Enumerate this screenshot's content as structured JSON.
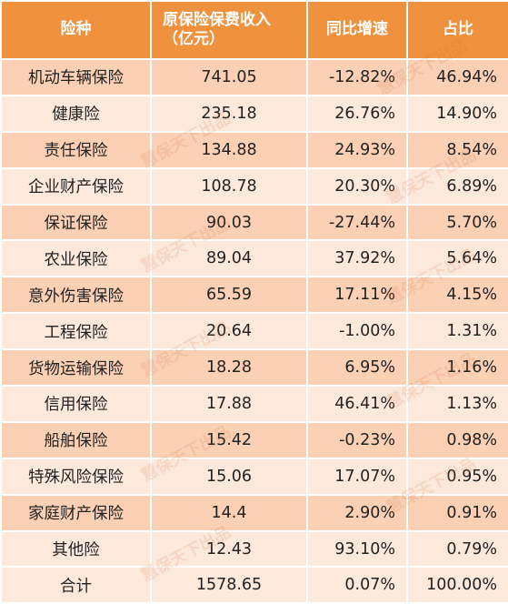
{
  "header": {
    "col1": "险种",
    "col2_line1": "原保险保费收入",
    "col2_line2": "（亿元）",
    "col3": "同比增速",
    "col4": "占比"
  },
  "rows": [
    {
      "name": "机动车辆保险",
      "premium": "741.05",
      "growth": "-12.82%",
      "share": "46.94%"
    },
    {
      "name": "健康险",
      "premium": "235.18",
      "growth": "26.76%",
      "share": "14.90%"
    },
    {
      "name": "责任保险",
      "premium": "134.88",
      "growth": "24.93%",
      "share": "8.54%"
    },
    {
      "name": "企业财产保险",
      "premium": "108.78",
      "growth": "20.30%",
      "share": "6.89%"
    },
    {
      "name": "保证保险",
      "premium": "90.03",
      "growth": "-27.44%",
      "share": "5.70%"
    },
    {
      "name": "农业保险",
      "premium": "89.04",
      "growth": "37.92%",
      "share": "5.64%"
    },
    {
      "name": "意外伤害保险",
      "premium": "65.59",
      "growth": "17.11%",
      "share": "4.15%"
    },
    {
      "name": "工程保险",
      "premium": "20.64",
      "growth": "-1.00%",
      "share": "1.31%"
    },
    {
      "name": "货物运输保险",
      "premium": "18.28",
      "growth": "6.95%",
      "share": "1.16%"
    },
    {
      "name": "信用保险",
      "premium": "17.88",
      "growth": "46.41%",
      "share": "1.13%"
    },
    {
      "name": "船舶保险",
      "premium": "15.42",
      "growth": "-0.23%",
      "share": "0.98%"
    },
    {
      "name": "特殊风险保险",
      "premium": "15.06",
      "growth": "17.07%",
      "share": "0.95%"
    },
    {
      "name": "家庭财产保险",
      "premium": "14.4",
      "growth": "2.90%",
      "share": "0.91%"
    },
    {
      "name": "其他险",
      "premium": "12.43",
      "growth": "93.10%",
      "share": "0.79%"
    }
  ],
  "total": {
    "name": "合计",
    "premium": "1578.65",
    "growth": "0.07%",
    "share": "100.00%"
  },
  "watermark": "慧保天下出品",
  "colors": {
    "header": "#f0913d",
    "row_dark": "#fbd0b4",
    "row_light": "#fde9dc"
  }
}
